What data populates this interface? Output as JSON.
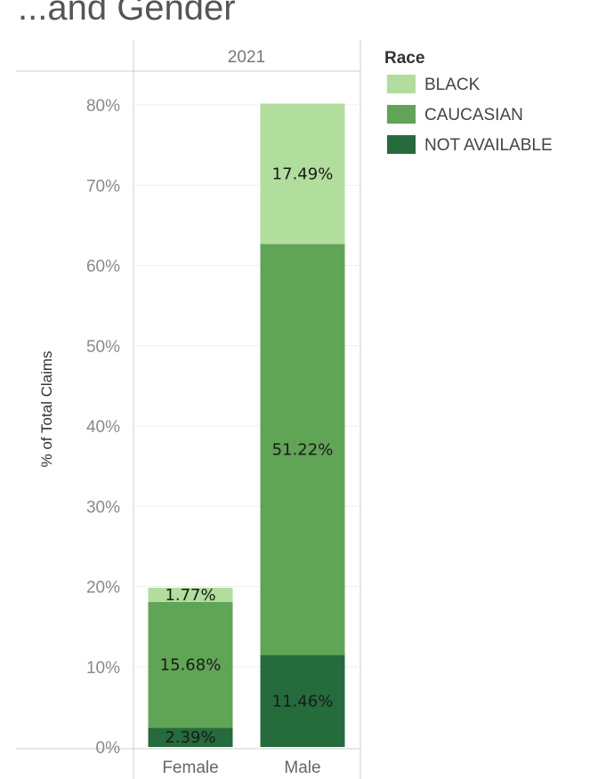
{
  "chart_data": {
    "type": "bar",
    "stacked": true,
    "title": "...and Gender",
    "panel_label": "2021",
    "categories": [
      "Female",
      "Male"
    ],
    "ylabel": "% of Total Claims",
    "ylim": [
      0,
      80
    ],
    "yticks": [
      "0%",
      "10%",
      "20%",
      "30%",
      "40%",
      "50%",
      "60%",
      "70%",
      "80%"
    ],
    "grid": true,
    "legend": {
      "title": "Race",
      "position": "right"
    },
    "series": [
      {
        "name": "NOT AVAILABLE",
        "color": "#256b3c",
        "values": [
          2.39,
          11.46
        ],
        "labels": [
          "2.39%",
          "11.46%"
        ]
      },
      {
        "name": "CAUCASIAN",
        "color": "#60a455",
        "values": [
          15.68,
          51.22
        ],
        "labels": [
          "15.68%",
          "51.22%"
        ]
      },
      {
        "name": "BLACK",
        "color": "#b1dd9d",
        "values": [
          1.77,
          17.49
        ],
        "labels": [
          "1.77%",
          "17.49%"
        ]
      }
    ]
  }
}
